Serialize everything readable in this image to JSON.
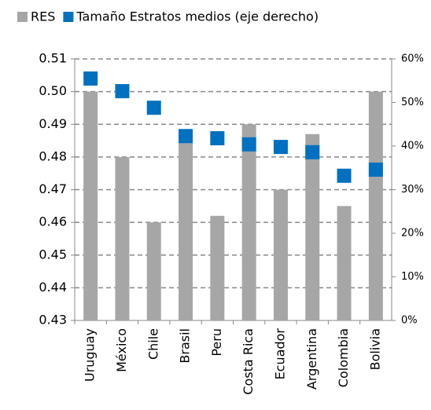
{
  "chart_data": {
    "type": "bar",
    "categories": [
      "Uruguay",
      "México",
      "Chile",
      "Brasil",
      "Peru",
      "Costa Rica",
      "Ecuador",
      "Argentina",
      "Colombia",
      "Bolivia"
    ],
    "series": [
      {
        "name": "RES",
        "color": "#a6a6a6",
        "type": "bar",
        "values": [
          0.5,
          0.48,
          0.46,
          0.488,
          0.462,
          0.49,
          0.47,
          0.487,
          0.465,
          0.5
        ]
      },
      {
        "name": "Tamaño Estratos medios (eje derecho)",
        "color": "#0070c0",
        "type": "scatter",
        "axis": "y2",
        "values": [
          55.5,
          52.6,
          48.8,
          42.3,
          41.8,
          40.4,
          39.8,
          38.6,
          33.2,
          34.6
        ]
      }
    ],
    "ylim": [
      0.43,
      0.51
    ],
    "yticks": [
      0.43,
      0.44,
      0.45,
      0.46,
      0.47,
      0.48,
      0.49,
      {
        "value": 0.5,
        "label": "0.50"
      },
      0.51
    ],
    "y2lim": [
      0,
      60
    ],
    "y2ticks": [
      {
        "value": 0,
        "label": "0%"
      },
      {
        "value": 10,
        "label": "10%"
      },
      {
        "value": 20,
        "label": "20%"
      },
      {
        "value": 30,
        "label": "30%"
      },
      {
        "value": 40,
        "label": "40%"
      },
      {
        "value": 50,
        "label": "50%"
      },
      {
        "value": 60,
        "label": "60%"
      }
    ],
    "grid": true,
    "legend": "top"
  }
}
